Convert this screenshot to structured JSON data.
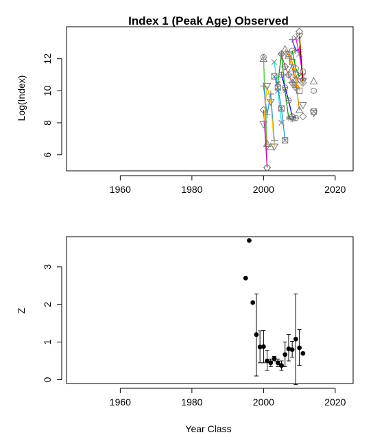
{
  "chart_data": [
    {
      "type": "line",
      "title": "Index 1 (Peak Age) Observed",
      "xlabel": "",
      "ylabel": "Log(Index)",
      "xlim": [
        1945,
        2025
      ],
      "ylim": [
        5,
        14
      ],
      "x_ticks": [
        1960,
        1980,
        2000,
        2020
      ],
      "y_ticks": [
        6,
        8,
        10,
        12
      ],
      "grid": false,
      "legend": "none",
      "series": [
        {
          "color": "#DF536B",
          "marker": "circle",
          "x": [
            2000,
            2001
          ],
          "y": [
            12.1,
            5.2
          ]
        },
        {
          "color": "#61D04F",
          "marker": "triangle",
          "x": [
            2000,
            2001,
            2002
          ],
          "y": [
            12.0,
            6.7,
            6.5
          ]
        },
        {
          "color": "#2297E6",
          "marker": "plus",
          "x": [
            2000,
            2001,
            2002,
            2003
          ],
          "y": [
            10.3,
            8.5,
            9.8,
            6.9
          ]
        },
        {
          "color": "#28E2E5",
          "marker": "cross",
          "x": [
            2003,
            2004,
            2005
          ],
          "y": [
            11.8,
            10.0,
            8.0
          ]
        },
        {
          "color": "#CD0BBC",
          "marker": "diamond",
          "x": [
            2000,
            2001
          ],
          "y": [
            8.8,
            5.2
          ]
        },
        {
          "color": "#F5C710",
          "marker": "triangle-down",
          "x": [
            2000,
            2001,
            2002,
            2003
          ],
          "y": [
            7.9,
            10.3,
            9.3,
            6.5
          ]
        },
        {
          "color": "#2297E6",
          "marker": "square-cross",
          "x": [
            2003,
            2004,
            2005,
            2006
          ],
          "y": [
            10.9,
            10.2,
            8.9,
            6.9
          ]
        },
        {
          "color": "#00A000",
          "marker": "star",
          "x": [
            2004,
            2005,
            2006,
            2007,
            2008
          ],
          "y": [
            10.5,
            12.3,
            10.0,
            8.3,
            8.2
          ]
        },
        {
          "color": "#DF536B",
          "marker": "diamond-plus",
          "x": [
            2005,
            2006,
            2007,
            2008,
            2009
          ],
          "y": [
            12.3,
            11.5,
            11.0,
            10.5,
            10.2
          ]
        },
        {
          "color": "#0000FF",
          "marker": "circle-plus",
          "x": [
            2005,
            2006,
            2007,
            2008,
            2009
          ],
          "y": [
            11.0,
            10.2,
            9.4,
            8.4,
            8.3
          ]
        },
        {
          "color": "#CD8500",
          "marker": "triangle",
          "x": [
            2006,
            2007,
            2008,
            2009,
            2010
          ],
          "y": [
            12.6,
            12.2,
            11.4,
            10.7,
            8.8
          ]
        },
        {
          "color": "#FF8C00",
          "marker": "square",
          "x": [
            2007,
            2008,
            2009,
            2010
          ],
          "y": [
            12.3,
            11.8,
            11.0,
            10.0
          ]
        },
        {
          "color": "#00A000",
          "marker": "circle",
          "x": [
            2008,
            2009,
            2010,
            2011
          ],
          "y": [
            12.5,
            11.4,
            10.9,
            11.2
          ]
        },
        {
          "color": "#3030FF",
          "marker": "plus",
          "x": [
            2008,
            2009,
            2010,
            2011
          ],
          "y": [
            13.2,
            12.5,
            12.6,
            10.7
          ]
        },
        {
          "color": "#FF00FF",
          "marker": "cross",
          "x": [
            2009,
            2010,
            2011
          ],
          "y": [
            13.3,
            12.3,
            10.9
          ]
        },
        {
          "color": "#CDAD00",
          "marker": "diamond",
          "x": [
            2010,
            2011
          ],
          "y": [
            13.7,
            10.5
          ]
        },
        {
          "color": "#8B0000",
          "marker": "triangle-down",
          "x": [
            2010,
            2011
          ],
          "y": [
            13.4,
            10.6
          ]
        },
        {
          "color": "#808080",
          "marker": "circle",
          "x": [
            2014
          ],
          "y": [
            10.0
          ]
        },
        {
          "color": "#808080",
          "marker": "triangle",
          "x": [
            2014
          ],
          "y": [
            10.6
          ]
        },
        {
          "color": "#808080",
          "marker": "square-cross",
          "x": [
            2014
          ],
          "y": [
            8.7
          ]
        },
        {
          "color": "#808080",
          "marker": "triangle-down",
          "x": [
            2014
          ],
          "y": [
            8.6
          ]
        },
        {
          "color": "#808080",
          "marker": "diamond",
          "x": [
            2011
          ],
          "y": [
            8.4
          ]
        },
        {
          "color": "#808080",
          "marker": "triangle-down",
          "x": [
            2011
          ],
          "y": [
            9.1
          ]
        }
      ]
    },
    {
      "type": "scatter",
      "title": "",
      "xlabel": "Year Class",
      "ylabel": "Z",
      "xlim": [
        1945,
        2025
      ],
      "ylim": [
        -0.1,
        3.8
      ],
      "x_ticks": [
        1960,
        1980,
        2000,
        2020
      ],
      "y_ticks": [
        0,
        1,
        2,
        3
      ],
      "grid": false,
      "legend": "none",
      "points": [
        {
          "x": 1995,
          "y": 2.7
        },
        {
          "x": 1996,
          "y": 3.7
        },
        {
          "x": 1997,
          "y": 2.05
        },
        {
          "x": 1998,
          "y": 1.2,
          "lo": 0.1,
          "hi": 2.28
        },
        {
          "x": 1999,
          "y": 0.87,
          "lo": 0.45,
          "hi": 1.3
        },
        {
          "x": 2000,
          "y": 0.88,
          "lo": 0.45,
          "hi": 1.31
        },
        {
          "x": 2001,
          "y": 0.5,
          "lo": 0.25,
          "hi": 0.78
        },
        {
          "x": 2002,
          "y": 0.45,
          "lo": 0.35,
          "hi": 0.55
        },
        {
          "x": 2003,
          "y": 0.56,
          "lo": 0.5,
          "hi": 0.62
        },
        {
          "x": 2004,
          "y": 0.45,
          "lo": 0.35,
          "hi": 0.55
        },
        {
          "x": 2005,
          "y": 0.38,
          "lo": 0.25,
          "hi": 0.5
        },
        {
          "x": 2006,
          "y": 0.67,
          "lo": 0.35,
          "hi": 1.0
        },
        {
          "x": 2007,
          "y": 0.82,
          "lo": 0.5,
          "hi": 1.2
        },
        {
          "x": 2008,
          "y": 0.8,
          "lo": 0.6,
          "hi": 1.02
        },
        {
          "x": 2009,
          "y": 1.08,
          "lo": -0.13,
          "hi": 2.28
        },
        {
          "x": 2010,
          "y": 0.85,
          "lo": 0.38,
          "hi": 1.33
        },
        {
          "x": 2011,
          "y": 0.7
        }
      ]
    }
  ]
}
